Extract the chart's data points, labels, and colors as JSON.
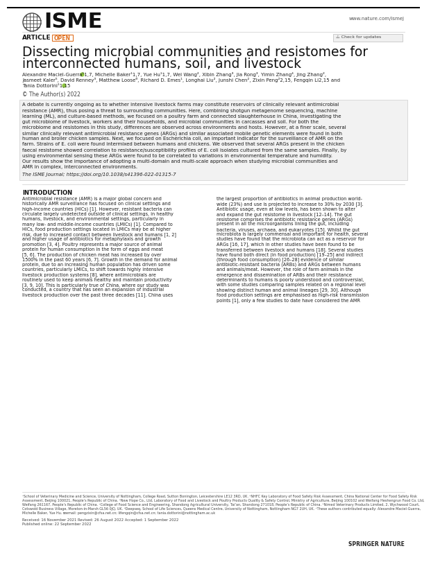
{
  "journal_url": "www.nature.com/ismej",
  "article_type": "ARTICLE",
  "open_label": "OPEN",
  "title_line1": "Dissecting microbial communities and resistomes for",
  "title_line2": "interconnected humans, soil, and livestock",
  "authors_line1": "Alexandre Maciel-Guerra¹1,7, Michelle Baker¹1,7, Yue Hu¹1,7, Wei Wang², Xibin Zhang³, Jia Rong³, Yimin Zhang⁴, Jing Zhang²,",
  "authors_line2": "Jasmeet Kaler⁵, David Renney³, Matthew Loose⁶, Richard D. Emes¹, Longhai Liu², Junshi Chen², Zixin Peng²2,15, Fengqin Li2,15 and",
  "authors_line3": "Tania Dottorini¹1,15",
  "copyright": "© The Author(s) 2022",
  "abstract_lines": [
    "A debate is currently ongoing as to whether intensive livestock farms may constitute reservoirs of clinically relevant antimicrobial",
    "resistance (AMR), thus posing a threat to surrounding communities. Here, combining shotgun metagenome sequencing, machine",
    "learning (ML), and culture-based methods, we focused on a poultry farm and connected slaughterhouse in China, investigating the",
    "gut microbiome of livestock, workers and their households, and microbial communities in carcasses and soil. For both the",
    "microbiome and resistomes in this study, differences are observed across environments and hosts. However, at a finer scale, several",
    "similar clinically relevant antimicrobial resistance genes (ARGs) and similar associated mobile genetic elements were found in both",
    "human and broiler chicken samples. Next, we focused on Escherichia coli, an important indicator for the surveillance of AMR on the",
    "farm. Strains of E. coli were found intermixed between humans and chickens. We observed that several ARGs present in the chicken",
    "faecal resistome showed correlation to resistance/susceptibility profiles of E. coli isolates cultured from the same samples. Finally, by",
    "using environmental sensing these ARGs were found to be correlated to variations in environmental temperature and humidity.",
    "Our results show the importance of adopting a multi-domain and multi-scale approach when studying microbial communities and",
    "AMR in complex, interconnected environments."
  ],
  "journal_ref": "The ISME Journal; https://doi.org/10.1038/s41396-022-01315-7",
  "intro_title": "INTRODUCTION",
  "intro_col1_lines": [
    "Antimicrobial resistance (AMR) is a major global concern and",
    "historically AMR surveillance has focused on clinical settings and",
    "high-income countries (HICs) [1]. However, resistant bacteria can",
    "circulate largely undetected outside of clinical settings, in healthy",
    "humans, livestock, and environmental settings, particularly in",
    "many low- and middle-income countries (LMICs) [1]. Compared to",
    "HICs, food production settings located in LMICs may be at higher",
    "risk, due to increased contact between livestock and humans [1, 2]",
    "and higher usage of antibiotics for metaphylaxis and growth",
    "promotion [3, 4]. Poultry represents a major source of animal",
    "protein for human consumption in the form of eggs and meat",
    "[5, 6]. The production of chicken meat has increased by over",
    "1500% in the past 60 years [6, 7]. Growth in the demand for animal",
    "protein, due to an increasing human population has driven some",
    "countries, particularly LMICs, to shift towards highly intensive",
    "livestock production systems [8], where antimicrobials are",
    "routinely used to keep animals healthy and maintain productivity",
    "[3, 9, 10]. This is particularly true of China, where our study was",
    "conducted, a country that has seen an expansion of industrial",
    "livestock production over the past three decades [11]. China uses"
  ],
  "intro_col2_lines": [
    "the largest proportion of antibiotics in animal production world-",
    "wide (23%) and use is projected to increase to 30% by 2030 [3].",
    "Antibiotic usage, even at low levels, has been shown to alter",
    "and expand the gut resistome in livestock [12–14]. The gut",
    "resistome comprises the antibiotic resistance genes (ARGs)",
    "present in all the microorganisms lining the gut, including",
    "bacteria, viruses, archaea, and eukaryotes [15]. Whilst the gut",
    "microbiota is largely commensal and important for health, several",
    "studies have found that the microbiota can act as a reservoir for",
    "ARGs [16, 17], which in other studies have been found to be",
    "transferred between livestock and humans [18]. Several studies",
    "have found both direct (in food production) [19–25] and indirect",
    "(through food consumption) [26–28] evidence of similar",
    "antibiotic-resistant bacteria (ARBs) and ARGs between humans",
    "and animals/meat. However, the role of farm animals in the",
    "emergence and dissemination of ARBs and their resistance",
    "determinants to humans is poorly understood and controversial,",
    "with some studies comparing samples related on a regional level",
    "showing distinct human and animal lineages [29, 30]. Although",
    "food production settings are emphasised as high-risk transmission",
    "points [1], only a few studies to date have considered the AMR"
  ],
  "footer_lines": [
    "¹School of Veterinary Medicine and Science, University of Nottingham, College Road, Sutton Bonington, Leicestershire LE12 3RD, UK. ²NHFC Key Laboratory of Food Safety Risk Assessment, China National Center for Food Safety Risk",
    "Assessment, Beijing 100021, People’s Republic of China. ³New Hope Co., Ltd, Laboratory of Food and Livestock and Poultry Products Quality & Safety Control, Ministry of Agriculture, Beijing 100102 and Weifang Heshengrun Food Co. Ltd,",
    "Weifang 261167, People’s Republic of China. ⁴College of Food Science and Engineering, Shandong Agricultural University, Tai’an, Shandong 271018, People’s Republic of China. ⁵Nimed Veterinary Products Limited, 2, Wychwood Court,",
    "Cotswold Business Village, Moreton-in-Marsh GL56 0JQ, UK. ⁶Deepseq, School of Life Sciences, Queens Medical Centre, University of Nottingham, Nottingham NG7 2UH, UK. ⁷These authors contributed equally: Alexandre Maciel-Guerra,",
    "Michelle Baker, Yue Hu. ✉email: pengzixin@cfsa.net.cn; lifengqin@cfsa.net.cn; tania.dottorini@nottingham.ac.uk"
  ],
  "received_line": "Received: 16 November 2021 Revised: 26 August 2022 Accepted: 1 September 2022",
  "published_line": "Published online: 22 September 2022",
  "publisher": "SPRINGER NATURE",
  "bg_color": "#ffffff",
  "abstract_bg": "#f2f2f2",
  "orange_color": "#e07020",
  "dark_color": "#111111",
  "mid_gray": "#555555",
  "light_gray": "#888888",
  "green_orcid": "#8dc63f"
}
